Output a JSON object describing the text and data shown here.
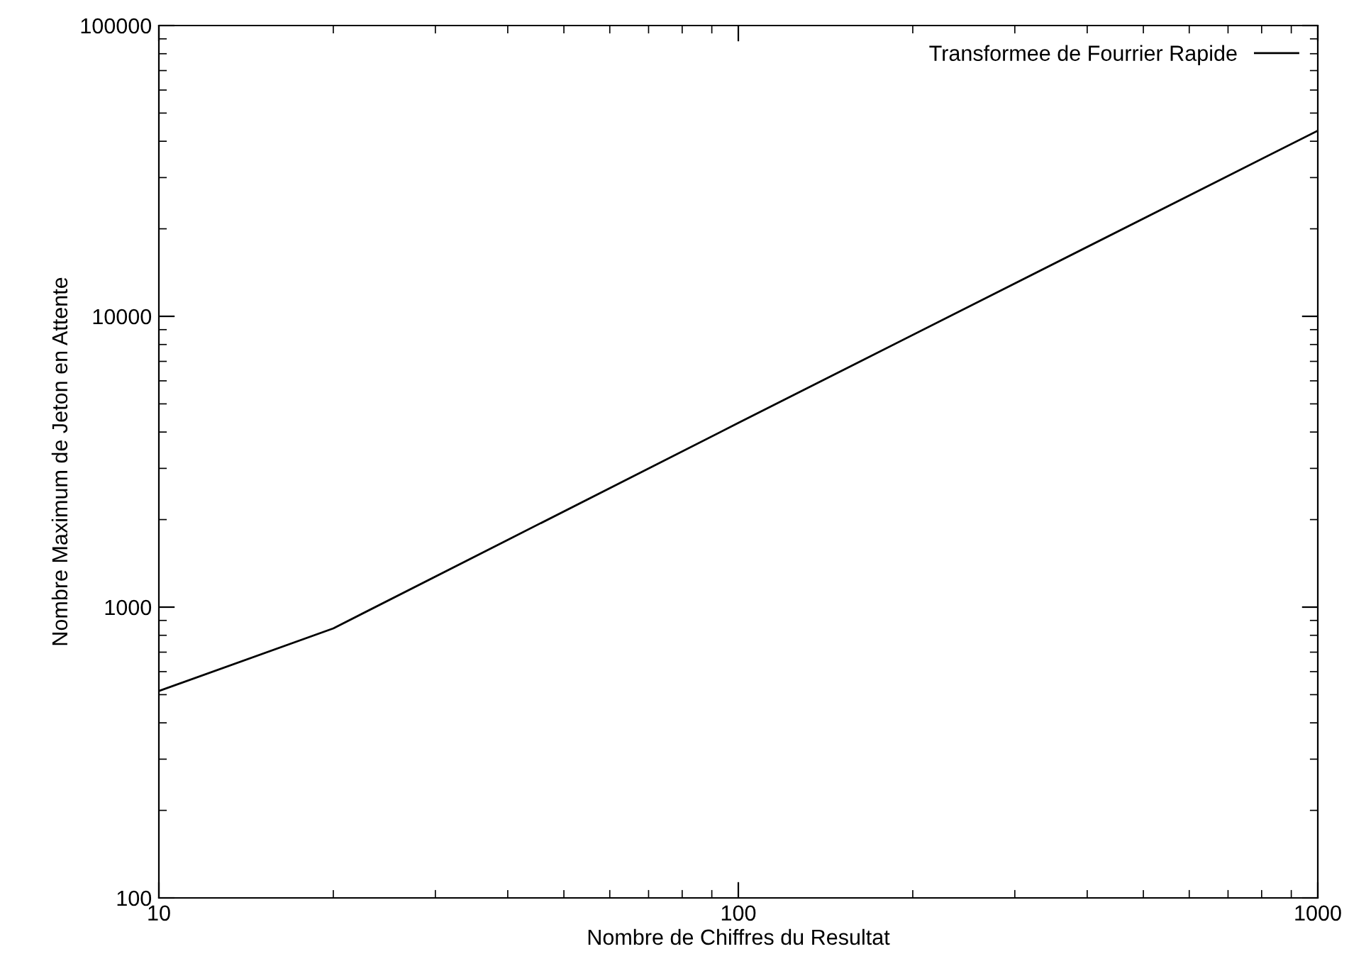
{
  "chart_data": {
    "type": "line",
    "xlabel": "Nombre de Chiffres du Resultat",
    "ylabel": "Nombre Maximum de Jeton en Attente",
    "log": "xy",
    "xlim": [
      10,
      1000
    ],
    "ylim": [
      100,
      100000
    ],
    "xticks": [
      10,
      100,
      1000
    ],
    "yticks": [
      100,
      1000,
      10000,
      100000
    ],
    "grid": false,
    "legend": "top right",
    "marker": "none",
    "line_style": "solid",
    "series": [
      {
        "name": "Transformee de Fourrier Rapide",
        "color": "#000000",
        "x": [
          10,
          20,
          100,
          1000
        ],
        "values": [
          515,
          845,
          4300,
          43500
        ]
      }
    ]
  }
}
